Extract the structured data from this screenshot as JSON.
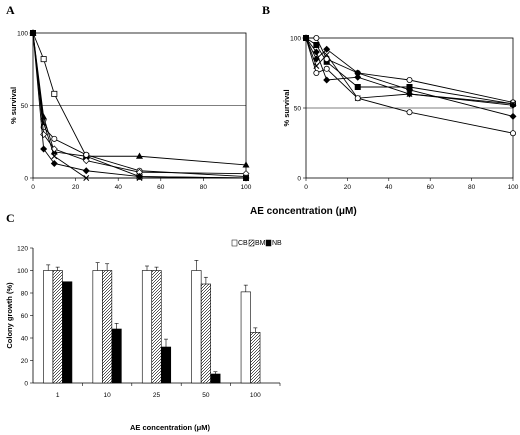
{
  "figure": {
    "shared_xlabel": "AE concentration (μM)",
    "panel_c_xlabel": "AE concentration (μM)"
  },
  "chart_data": [
    {
      "panel": "A",
      "type": "line",
      "xlim": [
        0,
        100
      ],
      "ylim": [
        0,
        100
      ],
      "xticks": [
        "0",
        "20",
        "40",
        "60",
        "80",
        "100"
      ],
      "yticks": [
        "0",
        "50",
        "100"
      ],
      "ylabel": "% survival",
      "xlabel": "",
      "reference_line": 50,
      "grid": false,
      "series": [
        {
          "marker": "square-open",
          "x": [
            0,
            5,
            10,
            25,
            50,
            100
          ],
          "y": [
            100,
            82,
            58,
            15,
            1,
            0
          ]
        },
        {
          "marker": "triangle-filled",
          "x": [
            0,
            5,
            10,
            25,
            50,
            100
          ],
          "y": [
            100,
            42,
            18,
            15,
            15,
            9
          ]
        },
        {
          "marker": "circle-open",
          "x": [
            0,
            5,
            10,
            25,
            50,
            100
          ],
          "y": [
            100,
            35,
            27,
            16,
            5,
            1
          ]
        },
        {
          "marker": "diamond-open",
          "x": [
            0,
            5,
            10,
            25,
            50,
            100
          ],
          "y": [
            100,
            30,
            20,
            12,
            4,
            3
          ]
        },
        {
          "marker": "x",
          "x": [
            0,
            5,
            10,
            25,
            50,
            100
          ],
          "y": [
            100,
            38,
            15,
            0,
            0,
            0
          ]
        },
        {
          "marker": "diamond-filled",
          "x": [
            0,
            5,
            10,
            25,
            50,
            100
          ],
          "y": [
            100,
            20,
            10,
            5,
            1,
            0
          ]
        }
      ]
    },
    {
      "panel": "B",
      "type": "line",
      "xlim": [
        0,
        100
      ],
      "ylim": [
        0,
        100
      ],
      "xticks": [
        "0",
        "20",
        "40",
        "60",
        "80",
        "100"
      ],
      "yticks": [
        "0",
        "50",
        "100"
      ],
      "ylabel": "% survival",
      "xlabel": "",
      "reference_line": 50,
      "grid": false,
      "series": [
        {
          "marker": "square-filled",
          "x": [
            0,
            5,
            10,
            25,
            50,
            100
          ],
          "y": [
            100,
            95,
            83,
            65,
            65,
            53
          ]
        },
        {
          "marker": "circle-open",
          "x": [
            0,
            5,
            10,
            25,
            50,
            100
          ],
          "y": [
            100,
            100,
            85,
            75,
            70,
            54
          ]
        },
        {
          "marker": "diamond-filled",
          "x": [
            0,
            5,
            10,
            25,
            50,
            100
          ],
          "y": [
            100,
            85,
            92,
            75,
            63,
            44
          ]
        },
        {
          "marker": "x",
          "x": [
            0,
            5,
            10,
            25,
            50,
            100
          ],
          "y": [
            100,
            80,
            88,
            57,
            60,
            53
          ]
        },
        {
          "marker": "circle-open",
          "x": [
            0,
            5,
            10,
            25,
            50,
            100
          ],
          "y": [
            100,
            75,
            78,
            57,
            47,
            32
          ]
        },
        {
          "marker": "diamond-filled",
          "x": [
            0,
            5,
            10,
            25,
            50,
            100
          ],
          "y": [
            100,
            90,
            70,
            72,
            60,
            52
          ]
        }
      ]
    },
    {
      "panel": "C",
      "type": "bar",
      "categories": [
        "1",
        "10",
        "25",
        "50",
        "100"
      ],
      "ylim": [
        0,
        120
      ],
      "yticks": [
        "0",
        "20",
        "40",
        "60",
        "80",
        "100",
        "120"
      ],
      "ylabel": "Colony growth (%)",
      "xlabel": "AE concentration (μM)",
      "legend_position": "top-right",
      "series": [
        {
          "name": "CB",
          "pattern": "white",
          "values": [
            100,
            100,
            100,
            100,
            81
          ],
          "errors": [
            5,
            7,
            4,
            9,
            6
          ]
        },
        {
          "name": "BM",
          "pattern": "hatched",
          "values": [
            100,
            100,
            100,
            88,
            45
          ],
          "errors": [
            3,
            6,
            3,
            6,
            4
          ]
        },
        {
          "name": "NB",
          "pattern": "black",
          "values": [
            90,
            48,
            32,
            8,
            null
          ],
          "errors": [
            0,
            5,
            7,
            2,
            null
          ]
        }
      ]
    }
  ],
  "labels": {
    "a": "A",
    "b": "B",
    "c": "C"
  }
}
